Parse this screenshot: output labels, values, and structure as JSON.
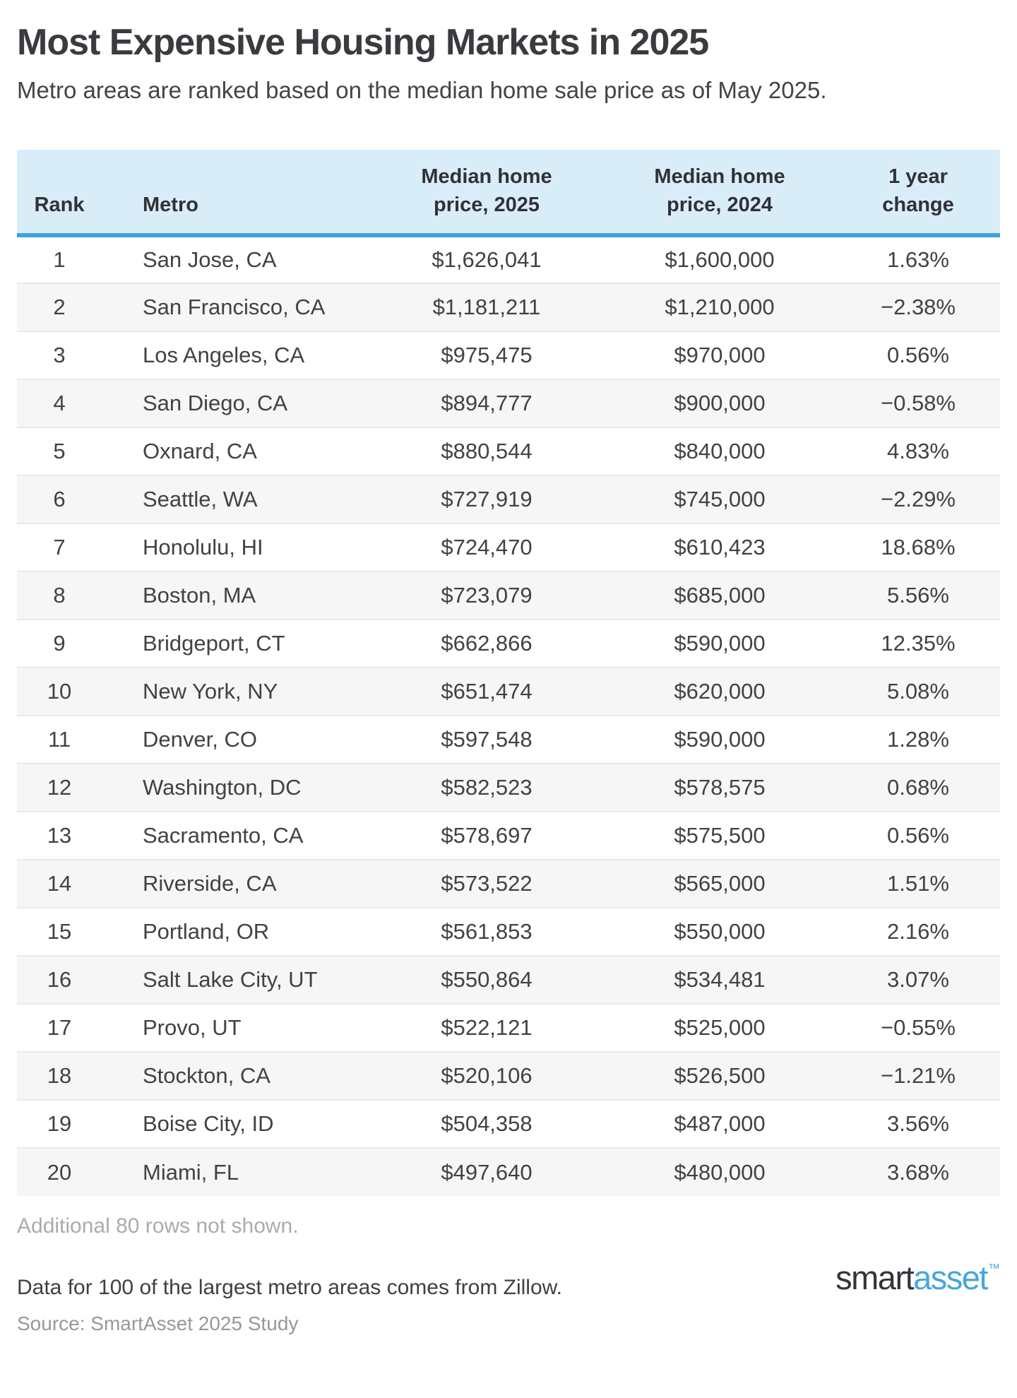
{
  "title": "Most Expensive Housing Markets in 2025",
  "subtitle": "Metro areas are ranked based on the median home sale price as of May 2025.",
  "chart_data": {
    "type": "table",
    "columns": [
      {
        "key": "rank",
        "label": "Rank"
      },
      {
        "key": "metro",
        "label": "Metro"
      },
      {
        "key": "price_2025",
        "label": "Median home\nprice, 2025"
      },
      {
        "key": "price_2024",
        "label": "Median home\nprice, 2024"
      },
      {
        "key": "change",
        "label": "1 year\nchange"
      }
    ],
    "rows": [
      {
        "rank": "1",
        "metro": "San Jose, CA",
        "price_2025": "$1,626,041",
        "price_2024": "$1,600,000",
        "change": "1.63%"
      },
      {
        "rank": "2",
        "metro": "San Francisco, CA",
        "price_2025": "$1,181,211",
        "price_2024": "$1,210,000",
        "change": "−2.38%"
      },
      {
        "rank": "3",
        "metro": "Los Angeles, CA",
        "price_2025": "$975,475",
        "price_2024": "$970,000",
        "change": "0.56%"
      },
      {
        "rank": "4",
        "metro": "San Diego, CA",
        "price_2025": "$894,777",
        "price_2024": "$900,000",
        "change": "−0.58%"
      },
      {
        "rank": "5",
        "metro": "Oxnard, CA",
        "price_2025": "$880,544",
        "price_2024": "$840,000",
        "change": "4.83%"
      },
      {
        "rank": "6",
        "metro": "Seattle, WA",
        "price_2025": "$727,919",
        "price_2024": "$745,000",
        "change": "−2.29%"
      },
      {
        "rank": "7",
        "metro": "Honolulu, HI",
        "price_2025": "$724,470",
        "price_2024": "$610,423",
        "change": "18.68%"
      },
      {
        "rank": "8",
        "metro": "Boston, MA",
        "price_2025": "$723,079",
        "price_2024": "$685,000",
        "change": "5.56%"
      },
      {
        "rank": "9",
        "metro": "Bridgeport, CT",
        "price_2025": "$662,866",
        "price_2024": "$590,000",
        "change": "12.35%"
      },
      {
        "rank": "10",
        "metro": "New York, NY",
        "price_2025": "$651,474",
        "price_2024": "$620,000",
        "change": "5.08%"
      },
      {
        "rank": "11",
        "metro": "Denver, CO",
        "price_2025": "$597,548",
        "price_2024": "$590,000",
        "change": "1.28%"
      },
      {
        "rank": "12",
        "metro": "Washington, DC",
        "price_2025": "$582,523",
        "price_2024": "$578,575",
        "change": "0.68%"
      },
      {
        "rank": "13",
        "metro": "Sacramento, CA",
        "price_2025": "$578,697",
        "price_2024": "$575,500",
        "change": "0.56%"
      },
      {
        "rank": "14",
        "metro": "Riverside, CA",
        "price_2025": "$573,522",
        "price_2024": "$565,000",
        "change": "1.51%"
      },
      {
        "rank": "15",
        "metro": "Portland, OR",
        "price_2025": "$561,853",
        "price_2024": "$550,000",
        "change": "2.16%"
      },
      {
        "rank": "16",
        "metro": "Salt Lake City, UT",
        "price_2025": "$550,864",
        "price_2024": "$534,481",
        "change": "3.07%"
      },
      {
        "rank": "17",
        "metro": "Provo, UT",
        "price_2025": "$522,121",
        "price_2024": "$525,000",
        "change": "−0.55%"
      },
      {
        "rank": "18",
        "metro": "Stockton, CA",
        "price_2025": "$520,106",
        "price_2024": "$526,500",
        "change": "−1.21%"
      },
      {
        "rank": "19",
        "metro": "Boise City, ID",
        "price_2025": "$504,358",
        "price_2024": "$487,000",
        "change": "3.56%"
      },
      {
        "rank": "20",
        "metro": "Miami, FL",
        "price_2025": "$497,640",
        "price_2024": "$480,000",
        "change": "3.68%"
      }
    ]
  },
  "footer": {
    "additional_note": "Additional 80 rows not shown.",
    "data_note": "Data for 100 of the largest metro areas comes from Zillow.",
    "source": "Source: SmartAsset 2025 Study",
    "logo": {
      "smart": "smart",
      "asset": "asset",
      "trademark": "™"
    }
  },
  "colors": {
    "header_bg": "#d9edf9",
    "accent_blue": "#3da4d8",
    "row_alt_bg": "#f6f6f7",
    "title_color": "#3a3a3f",
    "logo_dark": "#33343a",
    "logo_blue": "#43a8db"
  }
}
